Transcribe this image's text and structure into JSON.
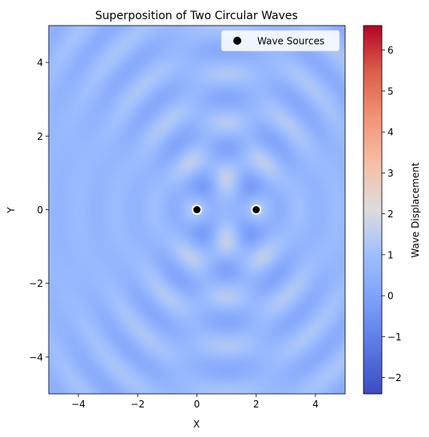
{
  "chart_data": {
    "type": "heatmap",
    "title": "Superposition of Two Circular Waves",
    "xlabel": "X",
    "ylabel": "Y",
    "xlim": [
      -5,
      5
    ],
    "ylim": [
      -5,
      5
    ],
    "x_ticks": [
      -4,
      -2,
      0,
      2,
      4
    ],
    "y_ticks": [
      -4,
      -2,
      0,
      2,
      4
    ],
    "x_tick_labels": [
      "−4",
      "−2",
      "0",
      "2",
      "4"
    ],
    "y_tick_labels": [
      "−4",
      "−2",
      "0",
      "2",
      "4"
    ],
    "grid": false,
    "legend_position": "top-right",
    "colormap": "coolwarm",
    "sources_series": {
      "name": "Wave Sources",
      "points": [
        {
          "x": 0,
          "y": 0
        },
        {
          "x": 2,
          "y": 0
        }
      ],
      "marker_color": "#000000",
      "marker_edge_color": "#ffffff"
    },
    "colorbar": {
      "label": "Wave Displacement",
      "range": [
        -2.4,
        6.6
      ],
      "ticks": [
        -2,
        -1,
        0,
        1,
        2,
        3,
        4,
        5,
        6
      ],
      "tick_labels": [
        "−2",
        "−1",
        "0",
        "1",
        "2",
        "3",
        "4",
        "5",
        "6"
      ]
    },
    "field": {
      "sources": [
        {
          "x": 0,
          "y": 0
        },
        {
          "x": 2,
          "y": 0
        }
      ],
      "wavenumber": 5,
      "background_level": 0.75
    }
  }
}
